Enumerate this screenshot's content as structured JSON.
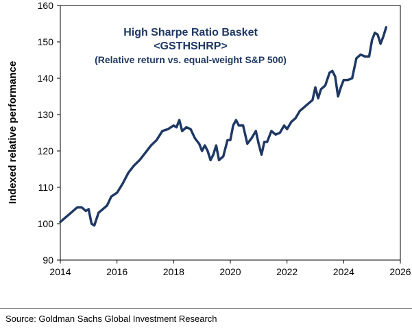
{
  "chart_data": {
    "type": "line",
    "title": "High Sharpe Ratio Basket",
    "subtitle_line1": "<GSTHSHRP>",
    "subtitle_line2": "(Relative return vs. equal-weight S&P 500)",
    "ylabel": "Indexed relative performance",
    "xlabel": "",
    "xlim": [
      2014,
      2026
    ],
    "ylim": [
      90,
      160
    ],
    "x_ticks": [
      "2014",
      "2016",
      "2018",
      "2020",
      "2022",
      "2024",
      "2026"
    ],
    "y_ticks": [
      "90",
      "100",
      "110",
      "120",
      "130",
      "140",
      "150",
      "160"
    ],
    "grid": false,
    "series": [
      {
        "color": "#1f3864",
        "x": [
          2014.0,
          2014.15,
          2014.3,
          2014.45,
          2014.6,
          2014.75,
          2014.9,
          2015.0,
          2015.1,
          2015.2,
          2015.35,
          2015.5,
          2015.65,
          2015.8,
          2016.0,
          2016.2,
          2016.4,
          2016.6,
          2016.8,
          2017.0,
          2017.2,
          2017.4,
          2017.6,
          2017.8,
          2018.0,
          2018.1,
          2018.2,
          2018.3,
          2018.45,
          2018.6,
          2018.75,
          2018.9,
          2019.0,
          2019.1,
          2019.2,
          2019.3,
          2019.4,
          2019.5,
          2019.6,
          2019.75,
          2019.9,
          2020.0,
          2020.1,
          2020.2,
          2020.3,
          2020.45,
          2020.6,
          2020.75,
          2020.9,
          2021.0,
          2021.1,
          2021.2,
          2021.3,
          2021.45,
          2021.6,
          2021.75,
          2021.9,
          2022.0,
          2022.15,
          2022.3,
          2022.45,
          2022.6,
          2022.75,
          2022.9,
          2023.0,
          2023.1,
          2023.2,
          2023.35,
          2023.5,
          2023.6,
          2023.7,
          2023.8,
          2023.9,
          2024.0,
          2024.15,
          2024.3,
          2024.45,
          2024.6,
          2024.75,
          2024.9,
          2025.0,
          2025.1,
          2025.2,
          2025.3,
          2025.4,
          2025.5
        ],
        "values": [
          100.5,
          101.5,
          102.5,
          103.5,
          104.5,
          104.5,
          103.5,
          104.0,
          100.0,
          99.5,
          103.0,
          104.0,
          105.0,
          107.5,
          108.5,
          111.0,
          114.0,
          116.0,
          117.5,
          119.5,
          121.5,
          123.0,
          125.5,
          126.0,
          127.0,
          126.5,
          128.5,
          125.5,
          126.5,
          126.0,
          123.5,
          122.0,
          120.0,
          121.5,
          120.0,
          117.5,
          119.0,
          121.5,
          117.5,
          118.5,
          123.0,
          123.0,
          127.0,
          128.5,
          127.0,
          127.0,
          122.0,
          123.5,
          125.5,
          122.0,
          119.0,
          122.5,
          122.5,
          125.5,
          124.5,
          125.0,
          127.0,
          126.0,
          128.0,
          129.0,
          131.0,
          132.0,
          133.0,
          134.0,
          137.5,
          134.5,
          137.0,
          138.0,
          141.5,
          142.0,
          140.5,
          135.0,
          137.5,
          139.5,
          139.5,
          140.0,
          145.5,
          146.5,
          146.0,
          146.0,
          150.5,
          152.5,
          152.0,
          149.5,
          151.5,
          154.0
        ]
      }
    ]
  },
  "footer": {
    "source": "Source: Goldman Sachs Global Investment Research"
  }
}
